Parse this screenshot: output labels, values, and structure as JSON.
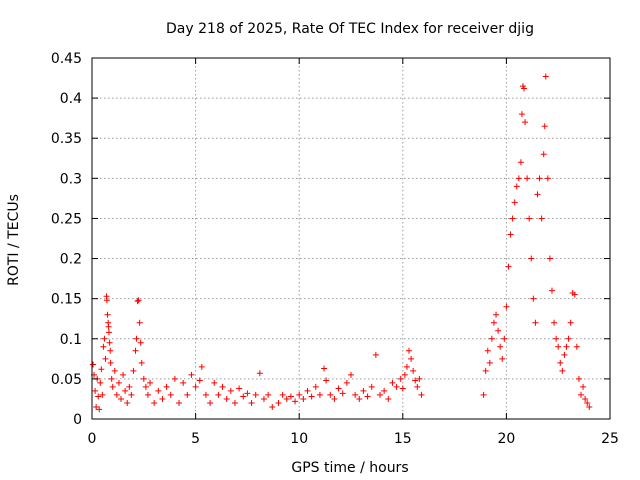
{
  "chart_data": {
    "type": "scatter",
    "title": "Day 218 of 2025, Rate Of TEC Index for receiver djig",
    "xlabel": "GPS time / hours",
    "ylabel": "ROTI / TECUs",
    "xlim": [
      0,
      25
    ],
    "ylim": [
      0,
      0.45
    ],
    "xticks": [
      0,
      5,
      10,
      15,
      20,
      25
    ],
    "xtick_labels": [
      "0",
      "5",
      "10",
      "15",
      "20",
      "25"
    ],
    "yticks": [
      0,
      0.05,
      0.1,
      0.15,
      0.2,
      0.25,
      0.3,
      0.35,
      0.4,
      0.45
    ],
    "ytick_labels": [
      "0",
      "0.05",
      "0.1",
      "0.15",
      "0.2",
      "0.25",
      "0.3",
      "0.35",
      "0.4",
      "0.45"
    ],
    "grid": true,
    "marker": "+",
    "color": "#ff0000",
    "series": [
      {
        "values_description_note": "",
        "points": [
          [
            0.05,
            0.068
          ],
          [
            0.1,
            0.055
          ],
          [
            0.15,
            0.035
          ],
          [
            0.2,
            0.015
          ],
          [
            0.25,
            0.05
          ],
          [
            0.3,
            0.028
          ],
          [
            0.35,
            0.012
          ],
          [
            0.4,
            0.045
          ],
          [
            0.45,
            0.062
          ],
          [
            0.5,
            0.03
          ],
          [
            0.55,
            0.09
          ],
          [
            0.6,
            0.1
          ],
          [
            0.65,
            0.075
          ],
          [
            0.7,
            0.153
          ],
          [
            0.72,
            0.148
          ],
          [
            0.75,
            0.13
          ],
          [
            0.78,
            0.12
          ],
          [
            0.8,
            0.115
          ],
          [
            0.82,
            0.108
          ],
          [
            0.85,
            0.095
          ],
          [
            0.88,
            0.085
          ],
          [
            0.9,
            0.07
          ],
          [
            0.95,
            0.05
          ],
          [
            1.0,
            0.04
          ],
          [
            1.1,
            0.06
          ],
          [
            1.2,
            0.03
          ],
          [
            1.3,
            0.045
          ],
          [
            1.4,
            0.025
          ],
          [
            1.5,
            0.055
          ],
          [
            1.6,
            0.035
          ],
          [
            1.7,
            0.02
          ],
          [
            1.8,
            0.04
          ],
          [
            1.9,
            0.03
          ],
          [
            2.0,
            0.06
          ],
          [
            2.1,
            0.085
          ],
          [
            2.15,
            0.1
          ],
          [
            2.2,
            0.147
          ],
          [
            2.25,
            0.148
          ],
          [
            2.3,
            0.12
          ],
          [
            2.35,
            0.095
          ],
          [
            2.4,
            0.07
          ],
          [
            2.5,
            0.05
          ],
          [
            2.6,
            0.04
          ],
          [
            2.7,
            0.03
          ],
          [
            2.8,
            0.045
          ],
          [
            3.0,
            0.02
          ],
          [
            3.2,
            0.035
          ],
          [
            3.4,
            0.025
          ],
          [
            3.6,
            0.04
          ],
          [
            3.8,
            0.03
          ],
          [
            4.0,
            0.05
          ],
          [
            4.2,
            0.02
          ],
          [
            4.4,
            0.045
          ],
          [
            4.6,
            0.03
          ],
          [
            4.8,
            0.055
          ],
          [
            5.0,
            0.04
          ],
          [
            5.2,
            0.048
          ],
          [
            5.3,
            0.065
          ],
          [
            5.5,
            0.03
          ],
          [
            5.7,
            0.02
          ],
          [
            5.9,
            0.045
          ],
          [
            6.1,
            0.03
          ],
          [
            6.3,
            0.04
          ],
          [
            6.5,
            0.025
          ],
          [
            6.7,
            0.035
          ],
          [
            6.9,
            0.02
          ],
          [
            7.1,
            0.038
          ],
          [
            7.3,
            0.028
          ],
          [
            7.5,
            0.032
          ],
          [
            7.7,
            0.02
          ],
          [
            7.9,
            0.03
          ],
          [
            8.1,
            0.057
          ],
          [
            8.3,
            0.025
          ],
          [
            8.5,
            0.03
          ],
          [
            8.7,
            0.015
          ],
          [
            9.0,
            0.02
          ],
          [
            9.2,
            0.03
          ],
          [
            9.4,
            0.025
          ],
          [
            9.6,
            0.028
          ],
          [
            9.8,
            0.022
          ],
          [
            10.0,
            0.03
          ],
          [
            10.2,
            0.025
          ],
          [
            10.4,
            0.035
          ],
          [
            10.6,
            0.028
          ],
          [
            10.8,
            0.04
          ],
          [
            11.0,
            0.03
          ],
          [
            11.2,
            0.063
          ],
          [
            11.3,
            0.048
          ],
          [
            11.5,
            0.03
          ],
          [
            11.7,
            0.025
          ],
          [
            11.9,
            0.038
          ],
          [
            12.1,
            0.032
          ],
          [
            12.3,
            0.045
          ],
          [
            12.5,
            0.055
          ],
          [
            12.7,
            0.03
          ],
          [
            12.9,
            0.025
          ],
          [
            13.1,
            0.035
          ],
          [
            13.3,
            0.028
          ],
          [
            13.5,
            0.04
          ],
          [
            13.7,
            0.08
          ],
          [
            13.9,
            0.03
          ],
          [
            14.1,
            0.035
          ],
          [
            14.3,
            0.025
          ],
          [
            14.5,
            0.045
          ],
          [
            14.7,
            0.04
          ],
          [
            14.9,
            0.05
          ],
          [
            15.0,
            0.038
          ],
          [
            15.1,
            0.055
          ],
          [
            15.2,
            0.065
          ],
          [
            15.3,
            0.085
          ],
          [
            15.4,
            0.075
          ],
          [
            15.5,
            0.06
          ],
          [
            15.6,
            0.048
          ],
          [
            15.7,
            0.04
          ],
          [
            15.8,
            0.05
          ],
          [
            15.9,
            0.03
          ],
          [
            18.9,
            0.03
          ],
          [
            19.0,
            0.06
          ],
          [
            19.1,
            0.085
          ],
          [
            19.2,
            0.07
          ],
          [
            19.3,
            0.1
          ],
          [
            19.4,
            0.12
          ],
          [
            19.5,
            0.13
          ],
          [
            19.6,
            0.11
          ],
          [
            19.7,
            0.09
          ],
          [
            19.8,
            0.075
          ],
          [
            19.9,
            0.1
          ],
          [
            20.0,
            0.14
          ],
          [
            20.1,
            0.19
          ],
          [
            20.2,
            0.23
          ],
          [
            20.3,
            0.25
          ],
          [
            20.4,
            0.27
          ],
          [
            20.5,
            0.29
          ],
          [
            20.6,
            0.3
          ],
          [
            20.7,
            0.32
          ],
          [
            20.75,
            0.38
          ],
          [
            20.8,
            0.415
          ],
          [
            20.85,
            0.412
          ],
          [
            20.9,
            0.37
          ],
          [
            21.0,
            0.3
          ],
          [
            21.1,
            0.25
          ],
          [
            21.2,
            0.2
          ],
          [
            21.3,
            0.15
          ],
          [
            21.4,
            0.12
          ],
          [
            21.5,
            0.28
          ],
          [
            21.6,
            0.3
          ],
          [
            21.7,
            0.25
          ],
          [
            21.8,
            0.33
          ],
          [
            21.85,
            0.365
          ],
          [
            21.9,
            0.427
          ],
          [
            22.0,
            0.3
          ],
          [
            22.1,
            0.2
          ],
          [
            22.2,
            0.16
          ],
          [
            22.3,
            0.12
          ],
          [
            22.4,
            0.1
          ],
          [
            22.5,
            0.09
          ],
          [
            22.6,
            0.07
          ],
          [
            22.7,
            0.06
          ],
          [
            22.8,
            0.08
          ],
          [
            22.9,
            0.09
          ],
          [
            23.0,
            0.1
          ],
          [
            23.1,
            0.12
          ],
          [
            23.2,
            0.157
          ],
          [
            23.3,
            0.155
          ],
          [
            23.4,
            0.09
          ],
          [
            23.5,
            0.05
          ],
          [
            23.6,
            0.03
          ],
          [
            23.7,
            0.04
          ],
          [
            23.8,
            0.025
          ],
          [
            23.9,
            0.02
          ],
          [
            24.0,
            0.015
          ]
        ]
      }
    ]
  }
}
